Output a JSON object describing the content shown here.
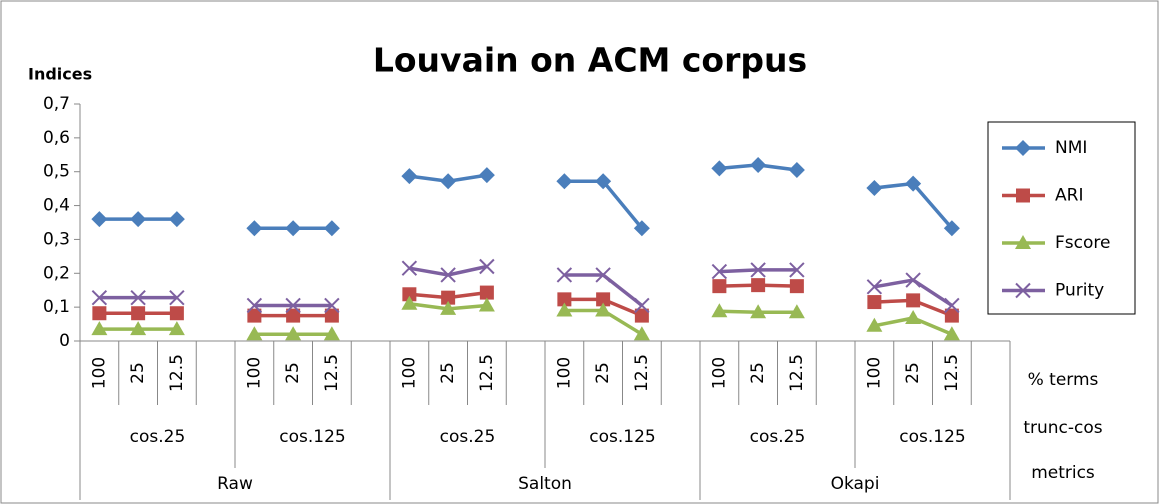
{
  "chart_data": {
    "type": "line",
    "title": "Louvain on ACM corpus",
    "y_label": "Indices",
    "categories": [
      "100",
      "25",
      "12.5",
      null,
      "100",
      "25",
      "12.5",
      null,
      "100",
      "25",
      "12.5",
      null,
      "100",
      "25",
      "12.5",
      null,
      "100",
      "25",
      "12.5",
      null,
      "100",
      "25",
      "12.5",
      null
    ],
    "subgroups": [
      "cos.25",
      "cos.125",
      "cos.25",
      "cos.125",
      "cos.25",
      "cos.125"
    ],
    "groups": [
      "Raw",
      "Salton",
      "Okapi"
    ],
    "level_labels": [
      "% terms",
      "trunc-cos",
      "metrics"
    ],
    "ylim": [
      0,
      0.7
    ],
    "yticks": [
      0,
      {
        "value": 0.1,
        "label": "0,1"
      },
      {
        "value": 0.2,
        "label": "0,2"
      },
      {
        "value": 0.3,
        "label": "0,3"
      },
      {
        "value": 0.4,
        "label": "0,4"
      },
      {
        "value": 0.5,
        "label": "0,5"
      },
      {
        "value": 0.6,
        "label": "0,6"
      },
      {
        "value": 0.7,
        "label": "0,7"
      }
    ],
    "legend": "right",
    "series": [
      {
        "name": "NMI",
        "color": "#4a7ebb",
        "marker": "diamond",
        "values": [
          0.36,
          0.36,
          0.36,
          null,
          0.333,
          0.333,
          0.333,
          null,
          0.487,
          0.472,
          0.49,
          null,
          0.472,
          0.472,
          0.333,
          null,
          0.51,
          0.52,
          0.505,
          null,
          0.452,
          0.465,
          0.333,
          null
        ]
      },
      {
        "name": "ARI",
        "color": "#be4b48",
        "marker": "square",
        "values": [
          0.082,
          0.082,
          0.082,
          null,
          0.075,
          0.075,
          0.075,
          null,
          0.138,
          0.128,
          0.143,
          null,
          0.123,
          0.123,
          0.075,
          null,
          0.162,
          0.165,
          0.162,
          null,
          0.115,
          0.12,
          0.075,
          null
        ]
      },
      {
        "name": "Fscore",
        "color": "#98b954",
        "marker": "triangle",
        "values": [
          0.035,
          0.035,
          0.035,
          null,
          0.02,
          0.02,
          0.02,
          null,
          0.11,
          0.095,
          0.105,
          null,
          0.09,
          0.09,
          0.02,
          null,
          0.088,
          0.085,
          0.085,
          null,
          0.045,
          0.068,
          0.02,
          null
        ]
      },
      {
        "name": "Purity",
        "color": "#7d60a0",
        "marker": "x",
        "values": [
          0.128,
          0.128,
          0.128,
          null,
          0.105,
          0.105,
          0.105,
          null,
          0.215,
          0.195,
          0.22,
          null,
          0.195,
          0.195,
          0.105,
          null,
          0.205,
          0.21,
          0.21,
          null,
          0.16,
          0.18,
          0.105,
          null
        ]
      }
    ]
  }
}
